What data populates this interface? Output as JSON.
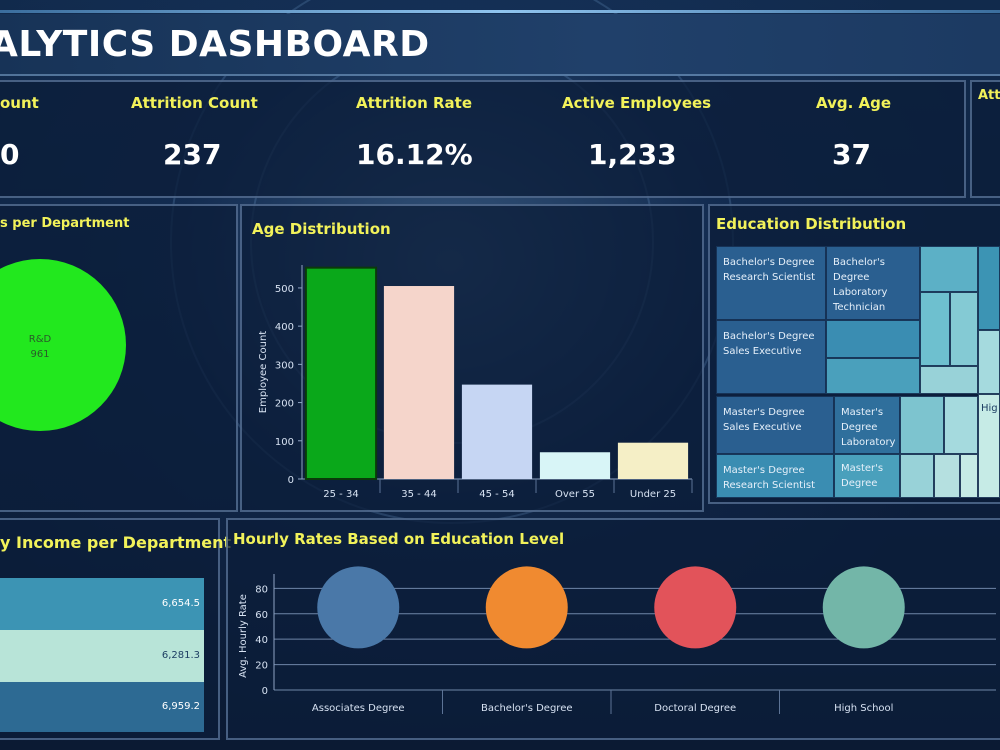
{
  "title": "ALYTICS DASHBOARD",
  "kpis": [
    {
      "label": "ount",
      "value": "0"
    },
    {
      "label": "Attrition Count",
      "value": "237"
    },
    {
      "label": "Attrition Rate",
      "value": "16.12%"
    },
    {
      "label": "Active Employees",
      "value": "1,233"
    },
    {
      "label": "Avg. Age",
      "value": "37"
    },
    {
      "label": "Att",
      "value": ""
    }
  ],
  "dept_panel": {
    "title": "s per Department",
    "slice_label": "R&D",
    "slice_value": "961",
    "slice_color": "#22e81e"
  },
  "age_panel": {
    "title": "Age Distribution",
    "chart_data": {
      "type": "bar",
      "categories": [
        "25 - 34",
        "35 - 44",
        "45 - 54",
        "Over 55",
        "Under 25"
      ],
      "values": [
        553,
        505,
        247,
        70,
        95
      ],
      "colors": [
        "#0aa81a",
        "#f5d5cb",
        "#c6d6f3",
        "#d8f5f7",
        "#f5efc6"
      ],
      "ylabel": "Employee Count",
      "yticks": [
        "0",
        "100",
        "200",
        "300",
        "400",
        "500"
      ],
      "ylim": [
        0,
        560
      ]
    }
  },
  "edu_panel": {
    "title": "Education Distribution",
    "cells": [
      "Bachelor's Degree Research Scientist",
      "Bachelor's Degree Laboratory Technician",
      "Bachelor's Degree Sales Executive",
      "Master's Degree Sales Executive",
      "Master's Degree Laboratory",
      "Master's Degree Research Scientist",
      "Master's Degree",
      "Hig"
    ]
  },
  "income_panel": {
    "title": "y Income per Department",
    "rows": [
      {
        "value": "6,654.5",
        "color": "#3c94b4"
      },
      {
        "value": "6,281.3",
        "color": "#b8e4d8"
      },
      {
        "value": "6,959.2",
        "color": "#2d6a93"
      }
    ]
  },
  "hourly_panel": {
    "title": "Hourly Rates Based on Education Level",
    "chart_data": {
      "type": "scatter",
      "categories": [
        "Associates Degree",
        "Bachelor's Degree",
        "Doctoral Degree",
        "High School"
      ],
      "values": [
        65,
        65,
        65,
        65
      ],
      "colors": [
        "#4a78a8",
        "#f08a30",
        "#e2535a",
        "#73b6a8"
      ],
      "ylabel": "Avg. Hourly Rate",
      "yticks": [
        "0",
        "20",
        "40",
        "60",
        "80"
      ],
      "ylim": [
        0,
        85
      ]
    }
  }
}
